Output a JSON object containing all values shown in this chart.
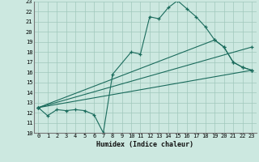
{
  "title": "",
  "xlabel": "Humidex (Indice chaleur)",
  "xlim": [
    -0.5,
    23.5
  ],
  "ylim": [
    10,
    23
  ],
  "xticks": [
    0,
    1,
    2,
    3,
    4,
    5,
    6,
    7,
    8,
    9,
    10,
    11,
    12,
    13,
    14,
    15,
    16,
    17,
    18,
    19,
    20,
    21,
    22,
    23
  ],
  "yticks": [
    10,
    11,
    12,
    13,
    14,
    15,
    16,
    17,
    18,
    19,
    20,
    21,
    22,
    23
  ],
  "bg_color": "#cce8e0",
  "grid_color": "#a0c8bc",
  "line_color": "#1a6b5c",
  "lines": [
    {
      "x": [
        0,
        1,
        2,
        3,
        4,
        5,
        6,
        7,
        8,
        10,
        11,
        12,
        13,
        14,
        15,
        16,
        17,
        18,
        19,
        20,
        21,
        22,
        23
      ],
      "y": [
        12.5,
        11.7,
        12.3,
        12.2,
        12.3,
        12.2,
        11.8,
        10.0,
        15.8,
        18.0,
        17.8,
        21.5,
        21.3,
        22.4,
        23.1,
        22.3,
        21.5,
        20.5,
        19.2,
        18.5,
        17.0,
        16.5,
        16.2
      ]
    },
    {
      "x": [
        0,
        19,
        20,
        21,
        22,
        23
      ],
      "y": [
        12.5,
        19.2,
        18.5,
        17.0,
        16.5,
        16.2
      ]
    },
    {
      "x": [
        0,
        23
      ],
      "y": [
        12.5,
        18.5
      ]
    },
    {
      "x": [
        0,
        23
      ],
      "y": [
        12.5,
        16.2
      ]
    }
  ]
}
